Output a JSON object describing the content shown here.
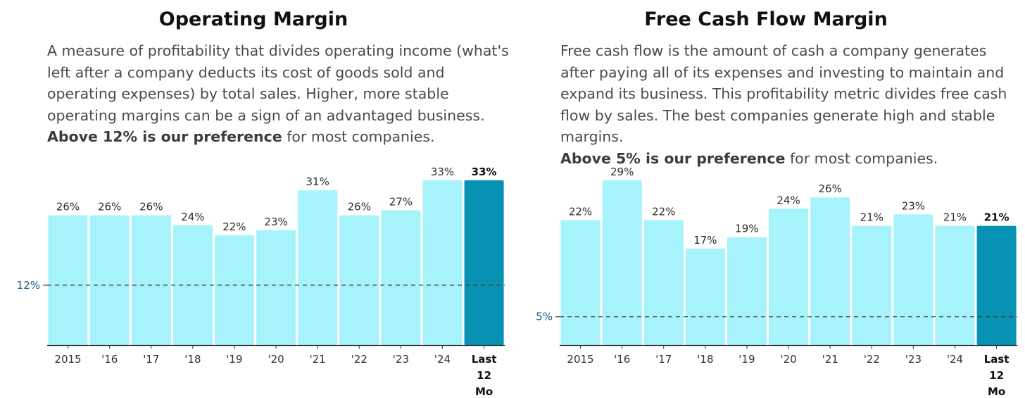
{
  "charts": [
    {
      "title": "Operating Margin",
      "description_text": "A measure of profitability that divides operating income (what's left after a company deducts its cost of goods sold and operating expenses) by total sales. Higher, more stable operating margins can be a sign of an advantaged business.",
      "preference_bold": "Above 12% is our preference",
      "preference_rest": " for most companies."
    },
    {
      "title": "Free Cash Flow Margin",
      "description_text": "Free cash flow is the amount of cash a company generates after paying all of its expenses and investing to maintain and expand its business. This profitability metric divides free cash flow by sales. The best companies generate high and stable margins.",
      "preference_bold": "Above 5% is our preference",
      "preference_rest": " for most companies."
    }
  ],
  "colors": {
    "bar": "#a6f3fb",
    "bar_highlight": "#0791b3",
    "reference_line": "#333333",
    "reference_label": "#1f5d7a"
  },
  "chart_data": [
    {
      "type": "bar",
      "title": "Operating Margin",
      "categories": [
        "2015",
        "'16",
        "'17",
        "'18",
        "'19",
        "'20",
        "'21",
        "'22",
        "'23",
        "'24",
        "Last 12 Mo"
      ],
      "values": [
        26,
        26,
        26,
        24,
        22,
        23,
        31,
        26,
        27,
        33,
        33
      ],
      "value_labels": [
        "26%",
        "26%",
        "26%",
        "24%",
        "22%",
        "23%",
        "31%",
        "26%",
        "27%",
        "33%",
        "33%"
      ],
      "highlight_index": 10,
      "reference_value": 12,
      "reference_label": "12%",
      "ylim": [
        0,
        33
      ],
      "grid": false,
      "legend": "none"
    },
    {
      "type": "bar",
      "title": "Free Cash Flow Margin",
      "categories": [
        "2015",
        "'16",
        "'17",
        "'18",
        "'19",
        "'20",
        "'21",
        "'22",
        "'23",
        "'24",
        "Last 12 Mo"
      ],
      "values": [
        22,
        29,
        22,
        17,
        19,
        24,
        26,
        21,
        23,
        21,
        21
      ],
      "value_labels": [
        "22%",
        "29%",
        "22%",
        "17%",
        "19%",
        "24%",
        "26%",
        "21%",
        "23%",
        "21%",
        "21%"
      ],
      "highlight_index": 10,
      "reference_value": 5,
      "reference_label": "5%",
      "ylim": [
        0,
        29
      ],
      "grid": false,
      "legend": "none"
    }
  ]
}
